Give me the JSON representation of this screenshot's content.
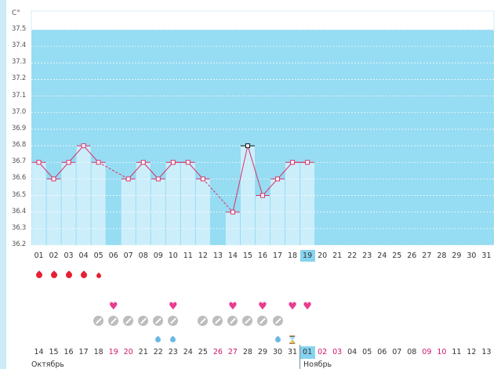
{
  "chart_data": {
    "type": "line",
    "unit": "C°",
    "ylim": [
      36.2,
      37.5
    ],
    "yticks": [
      "37.5",
      "37.4",
      "37.3",
      "37.2",
      "37.1",
      "37.0",
      "36.9",
      "36.8",
      "36.7",
      "36.6",
      "36.5",
      "36.4",
      "36.3",
      "36.2"
    ],
    "x": [
      "01",
      "02",
      "03",
      "04",
      "05",
      "06",
      "07",
      "08",
      "09",
      "10",
      "11",
      "12",
      "13",
      "14",
      "15",
      "16",
      "17",
      "18",
      "19",
      "20",
      "21",
      "22",
      "23",
      "24",
      "25",
      "26",
      "27",
      "28",
      "29",
      "30",
      "31"
    ],
    "today": "19",
    "series": [
      {
        "values": [
          36.7,
          36.6,
          36.7,
          36.8,
          36.7,
          null,
          36.6,
          36.7,
          36.6,
          36.7,
          36.7,
          36.6,
          null,
          36.4,
          36.8,
          36.5,
          36.6,
          36.7,
          36.7,
          null,
          null,
          null,
          null,
          null,
          null,
          null,
          null,
          null,
          null,
          null,
          null
        ]
      }
    ],
    "selected_day": "15",
    "grid": true
  },
  "symbols": {
    "menstruation": [
      "big",
      "big",
      "big",
      "big",
      "small",
      null,
      null,
      null,
      null,
      null,
      null,
      null,
      null,
      null,
      null,
      null,
      null,
      null,
      null,
      null,
      null,
      null,
      null,
      null,
      null,
      null,
      null,
      null,
      null,
      null,
      null
    ],
    "sex": [
      null,
      null,
      null,
      null,
      null,
      1,
      null,
      null,
      null,
      1,
      null,
      null,
      null,
      1,
      null,
      1,
      null,
      1,
      1,
      null,
      null,
      null,
      null,
      null,
      null,
      null,
      null,
      null,
      null,
      null,
      null
    ],
    "pills": [
      null,
      null,
      null,
      null,
      1,
      1,
      1,
      1,
      1,
      1,
      null,
      1,
      1,
      1,
      1,
      1,
      1,
      null,
      null,
      null,
      null,
      null,
      null,
      null,
      null,
      null,
      null,
      null,
      null,
      null,
      null
    ],
    "discharge": [
      null,
      null,
      null,
      null,
      null,
      null,
      null,
      null,
      1,
      1,
      null,
      null,
      null,
      null,
      null,
      null,
      "drop",
      "hourglass",
      null,
      null,
      null,
      null,
      null,
      null,
      null,
      null,
      null,
      null,
      null,
      null,
      null
    ]
  },
  "calendar": {
    "days": [
      {
        "d": "14",
        "wk": false
      },
      {
        "d": "15",
        "wk": false
      },
      {
        "d": "16",
        "wk": false
      },
      {
        "d": "17",
        "wk": false
      },
      {
        "d": "18",
        "wk": false
      },
      {
        "d": "19",
        "wk": true
      },
      {
        "d": "20",
        "wk": true
      },
      {
        "d": "21",
        "wk": false
      },
      {
        "d": "22",
        "wk": false
      },
      {
        "d": "23",
        "wk": false
      },
      {
        "d": "24",
        "wk": false
      },
      {
        "d": "25",
        "wk": false
      },
      {
        "d": "26",
        "wk": true
      },
      {
        "d": "27",
        "wk": true
      },
      {
        "d": "28",
        "wk": false
      },
      {
        "d": "29",
        "wk": false
      },
      {
        "d": "30",
        "wk": false
      },
      {
        "d": "31",
        "wk": false
      },
      {
        "d": "01",
        "wk": false,
        "cur": true
      },
      {
        "d": "02",
        "wk": true
      },
      {
        "d": "03",
        "wk": true
      },
      {
        "d": "04",
        "wk": false
      },
      {
        "d": "05",
        "wk": false
      },
      {
        "d": "06",
        "wk": false
      },
      {
        "d": "07",
        "wk": false
      },
      {
        "d": "08",
        "wk": false
      },
      {
        "d": "09",
        "wk": true
      },
      {
        "d": "10",
        "wk": true
      },
      {
        "d": "11",
        "wk": false
      },
      {
        "d": "12",
        "wk": false
      },
      {
        "d": "13",
        "wk": false
      }
    ],
    "month_left": "Октябрь",
    "month_right": "Ноябрь"
  },
  "colors": {
    "plot_bg": "#96dcf2",
    "bar": "#cceefb",
    "line": "#d6336b",
    "weekend": "#d0156c",
    "today": "#87d3ef"
  }
}
